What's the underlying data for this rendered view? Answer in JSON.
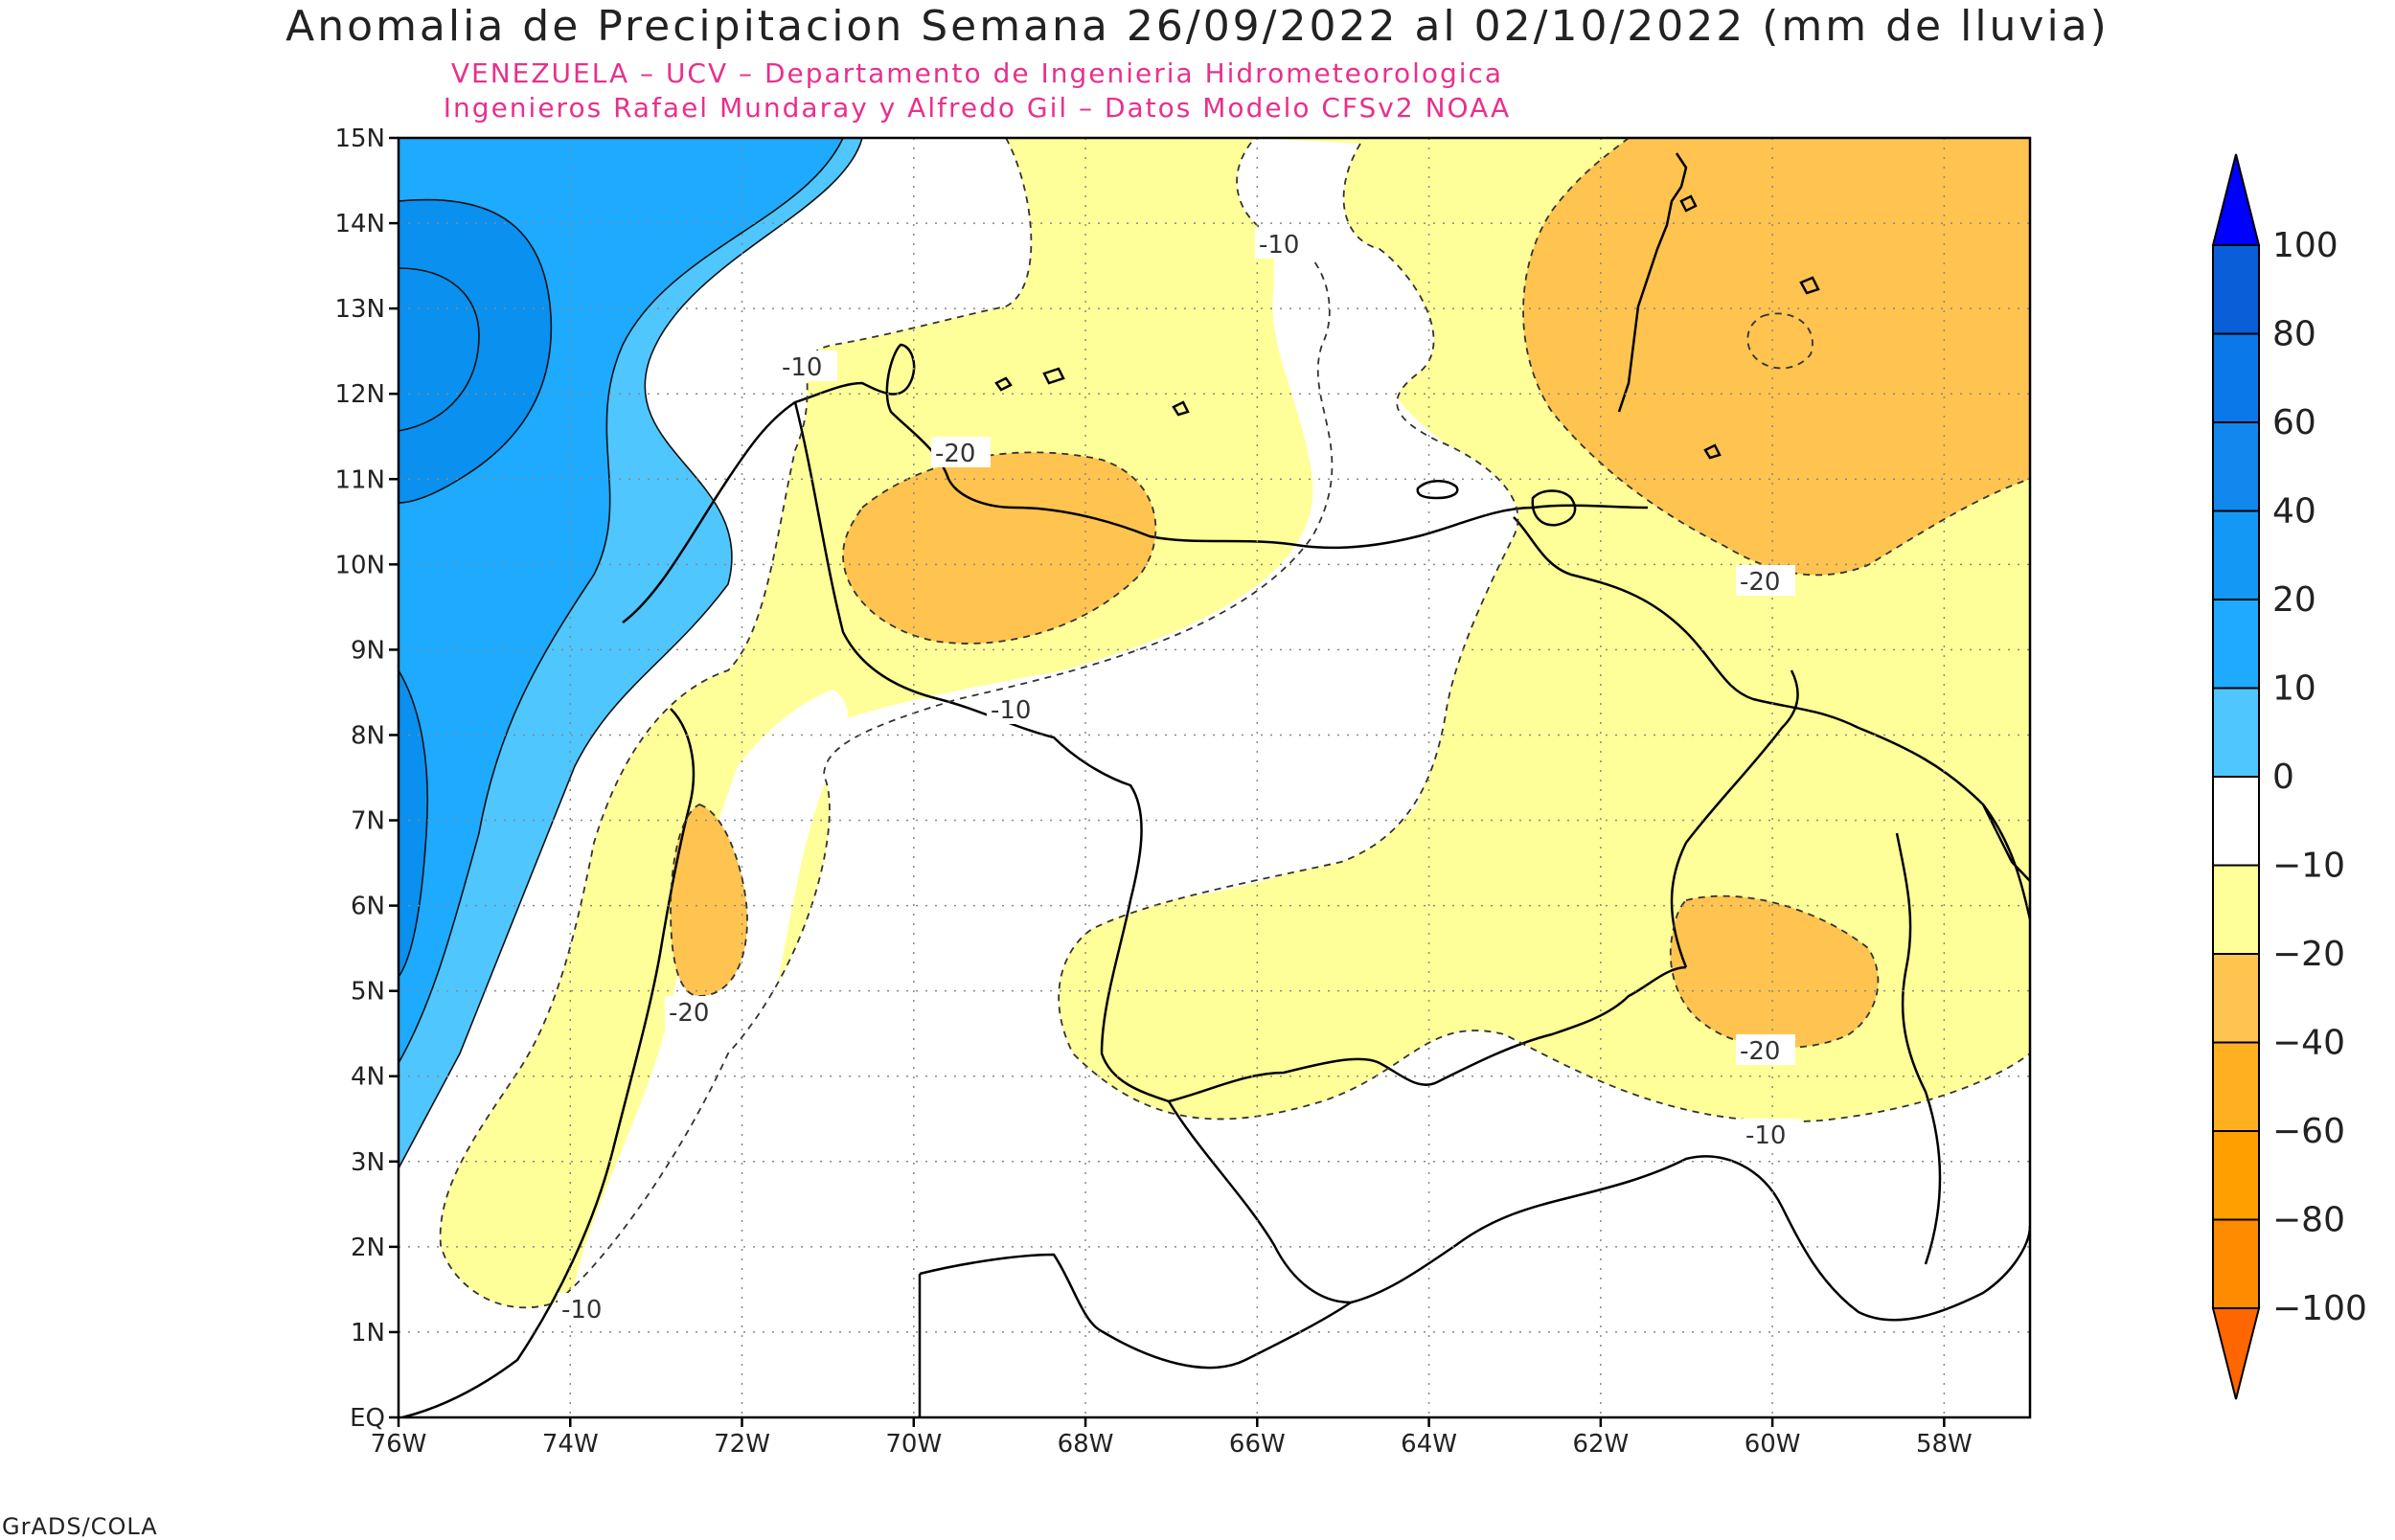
{
  "title": "Anomalia de Precipitacion Semana 26/09/2022 al 02/10/2022 (mm de lluvia)",
  "subtitle_lines": [
    "VENEZUELA – UCV – Departamento de Ingenieria Hidrometeorologica",
    "Ingenieros Rafael Mundaray y Alfredo Gil – Datos Modelo CFSv2 NOAA"
  ],
  "credit": "GrADS/COLA",
  "axes": {
    "lon_range": [
      -76,
      -57
    ],
    "lat_range": [
      0,
      15
    ],
    "x_ticks": [
      "76W",
      "74W",
      "72W",
      "70W",
      "68W",
      "66W",
      "64W",
      "62W",
      "60W",
      "58W"
    ],
    "y_ticks": [
      "EQ",
      "1N",
      "2N",
      "3N",
      "4N",
      "5N",
      "6N",
      "7N",
      "8N",
      "9N",
      "10N",
      "11N",
      "12N",
      "13N",
      "14N",
      "15N"
    ],
    "grid": "dotted"
  },
  "colorbar": {
    "labels": [
      "100",
      "80",
      "60",
      "40",
      "20",
      "10",
      "0",
      "-10",
      "-20",
      "-40",
      "-60",
      "-80",
      "-100"
    ],
    "top_arrow_color": "#0000ff",
    "bottom_arrow_color": "#ff6600",
    "colors": [
      "#0a5fd8",
      "#0a78e8",
      "#1088ee",
      "#1498f5",
      "#1eaaff",
      "#50c6ff",
      "#ffffff",
      "#ffff99",
      "#ffc350",
      "#ffb020",
      "#ffa000",
      "#ff8c00"
    ]
  },
  "contour_labels": [
    "-10",
    "-10",
    "-10",
    "-10",
    "-10",
    "-20",
    "-20",
    "-20",
    "-20"
  ],
  "field_colors": {
    "blue_dark": "#0a90ee",
    "blue_mid": "#1eaaff",
    "blue_light": "#50c6ff",
    "yellow": "#ffff99",
    "orange": "#ffc350"
  }
}
